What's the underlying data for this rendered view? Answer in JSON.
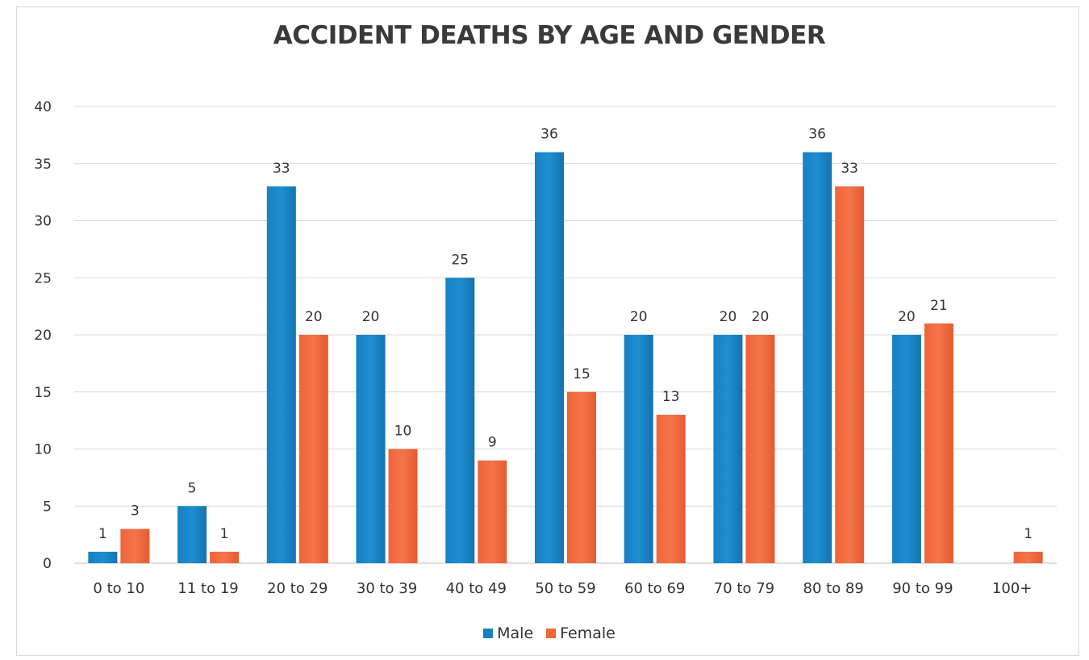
{
  "chart_data": {
    "type": "bar",
    "title": "ACCIDENT DEATHS BY AGE AND GENDER",
    "categories": [
      "0 to 10",
      "11 to 19",
      "20 to 29",
      "30 to 39",
      "40 to 49",
      "50 to 59",
      "60 to 69",
      "70 to 79",
      "80 to 89",
      "90 to 99",
      "100+"
    ],
    "series": [
      {
        "name": "Male",
        "color": "#1a7fc1",
        "values": [
          1,
          5,
          33,
          20,
          25,
          36,
          20,
          20,
          36,
          20,
          null
        ]
      },
      {
        "name": "Female",
        "color": "#f0673a",
        "values": [
          3,
          1,
          20,
          10,
          9,
          15,
          13,
          20,
          33,
          21,
          1
        ]
      }
    ],
    "ylim": [
      0,
      40
    ],
    "yticks": [
      0,
      5,
      10,
      15,
      20,
      25,
      30,
      35,
      40
    ],
    "grid": true,
    "legend_position": "bottom"
  }
}
